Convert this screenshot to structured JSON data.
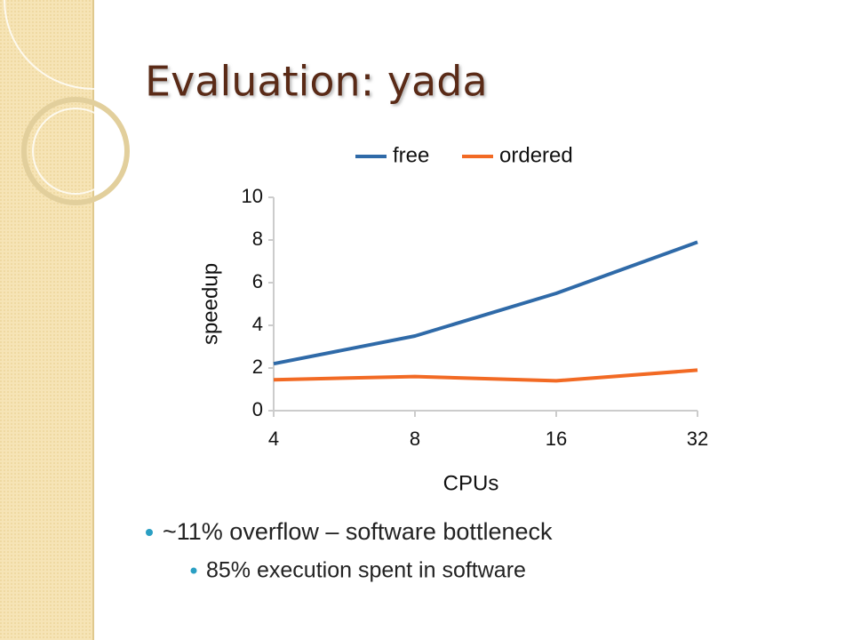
{
  "slide": {
    "title": "Evaluation: yada",
    "bullets": [
      "~11% overflow – software bottleneck",
      "85% execution spent in software"
    ]
  },
  "chart_data": {
    "type": "line",
    "x_label": "CPUs",
    "y_label": "speedup",
    "categories": [
      "4",
      "8",
      "16",
      "32"
    ],
    "series": [
      {
        "name": "free",
        "color": "#2f6aa8",
        "values": [
          2.2,
          3.5,
          5.5,
          7.9
        ]
      },
      {
        "name": "ordered",
        "color": "#f26a24",
        "values": [
          1.45,
          1.6,
          1.4,
          1.9
        ]
      }
    ],
    "ylim": [
      0,
      10
    ],
    "yticks": [
      0,
      2,
      4,
      6,
      8,
      10
    ],
    "grid": false,
    "legend": "top"
  }
}
